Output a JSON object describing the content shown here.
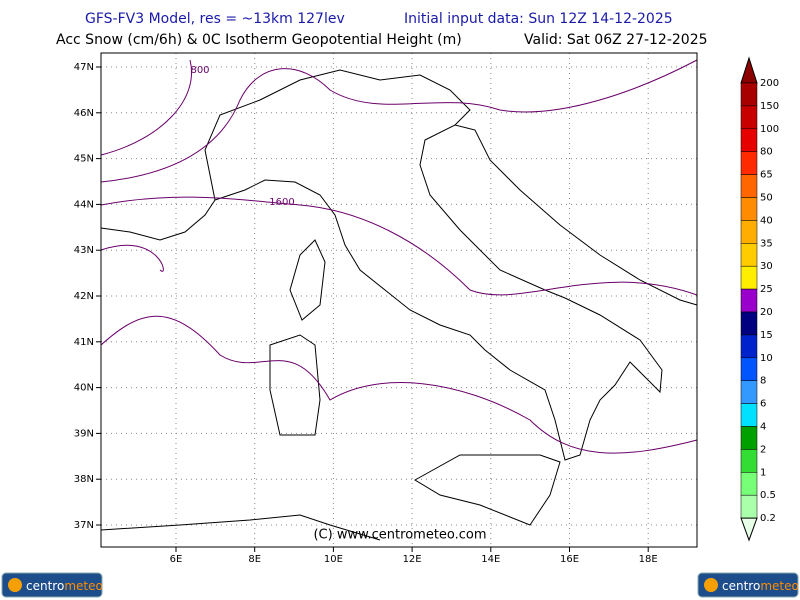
{
  "header": {
    "model": "GFS-FV3 Model, res = ~13km 127lev",
    "init": "Initial input data: Sun 12Z 14-12-2025",
    "field": "Acc Snow (cm/6h) & 0C Isotherm Geopotential Height (m)",
    "valid": "Valid: Sat 06Z 27-12-2025"
  },
  "map": {
    "lat_labels": [
      "47N",
      "46N",
      "45N",
      "44N",
      "43N",
      "42N",
      "41N",
      "40N",
      "39N",
      "38N",
      "37N"
    ],
    "lon_labels": [
      "6E",
      "8E",
      "10E",
      "12E",
      "14E",
      "16E",
      "18E"
    ],
    "contour_labels": [
      "800",
      "1600"
    ],
    "credit": "(C) www.centrometeo.com"
  },
  "colorbar": {
    "levels": [
      "200",
      "150",
      "100",
      "80",
      "65",
      "50",
      "40",
      "35",
      "30",
      "25",
      "20",
      "15",
      "10",
      "8",
      "6",
      "4",
      "2",
      "1",
      "0.5",
      "0.2"
    ],
    "colors": [
      "#8b0000",
      "#a80000",
      "#c80000",
      "#e60000",
      "#ff2a00",
      "#ff6600",
      "#ff8c00",
      "#ffae00",
      "#ffcc00",
      "#ffee00",
      "#9900cc",
      "#000080",
      "#0022cc",
      "#0055ff",
      "#3399ff",
      "#00e0ff",
      "#00a000",
      "#33dd33",
      "#77ff77",
      "#aaffaa",
      "#e8ffe8"
    ]
  },
  "logos": [
    {
      "a": "centro",
      "b": "meteo"
    },
    {
      "a": "centro",
      "b": "meteo"
    }
  ]
}
